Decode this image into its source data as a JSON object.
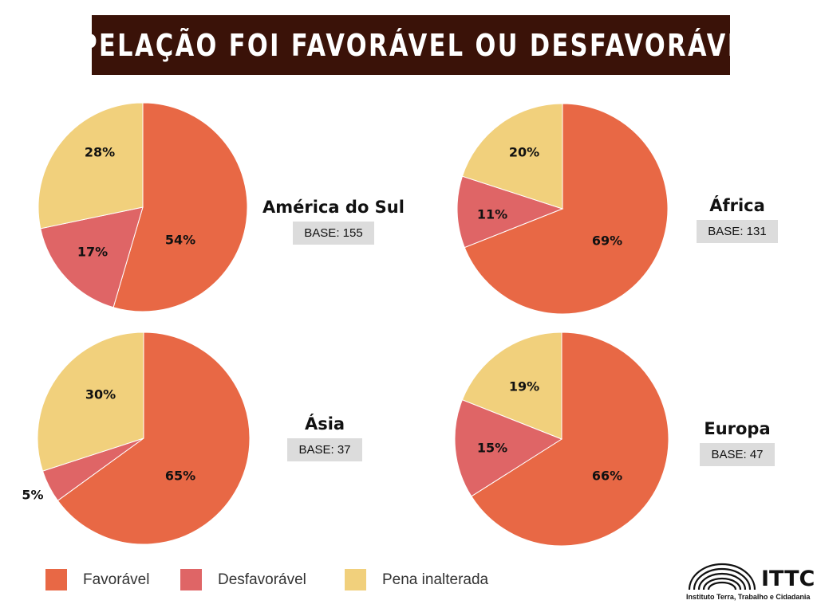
{
  "title": "APELAÇÃO FOI FAVORÁVEL OU DESFAVORÁVEL",
  "colors": {
    "title_bg": "#3a1208",
    "favoravel": "#e86845",
    "desfavoravel": "#df6566",
    "pena_inalterada": "#f1d07c"
  },
  "legend": [
    {
      "label": "Favorável",
      "color": "#e86845"
    },
    {
      "label": "Desfavorável",
      "color": "#df6566"
    },
    {
      "label": "Pena inalterada",
      "color": "#f1d07c"
    }
  ],
  "regions": [
    {
      "name": "América do Sul",
      "base": "BASE: 155"
    },
    {
      "name": "África",
      "base": "BASE: 131"
    },
    {
      "name": "Ásia",
      "base": "BASE: 37"
    },
    {
      "name": "Europa",
      "base": "BASE: 47"
    }
  ],
  "logo": {
    "text": "ITTC",
    "subtitle": "Instituto Terra, Trabalho e Cidadania"
  },
  "chart_data": [
    {
      "type": "pie",
      "title": "América do Sul",
      "categories": [
        "Favorável",
        "Desfavorável",
        "Pena inalterada"
      ],
      "values": [
        54,
        17,
        28
      ],
      "labels": [
        "54%",
        "17%",
        "28%"
      ]
    },
    {
      "type": "pie",
      "title": "África",
      "categories": [
        "Favorável",
        "Desfavorável",
        "Pena inalterada"
      ],
      "values": [
        69,
        11,
        20
      ],
      "labels": [
        "69%",
        "11%",
        "20%"
      ]
    },
    {
      "type": "pie",
      "title": "Ásia",
      "categories": [
        "Favorável",
        "Desfavorável",
        "Pena inalterada"
      ],
      "values": [
        65,
        5,
        30
      ],
      "labels": [
        "65%",
        "5%",
        "30%"
      ]
    },
    {
      "type": "pie",
      "title": "Europa",
      "categories": [
        "Favorável",
        "Desfavorável",
        "Pena inalterada"
      ],
      "values": [
        66,
        15,
        19
      ],
      "labels": [
        "66%",
        "15%",
        "19%"
      ]
    }
  ]
}
